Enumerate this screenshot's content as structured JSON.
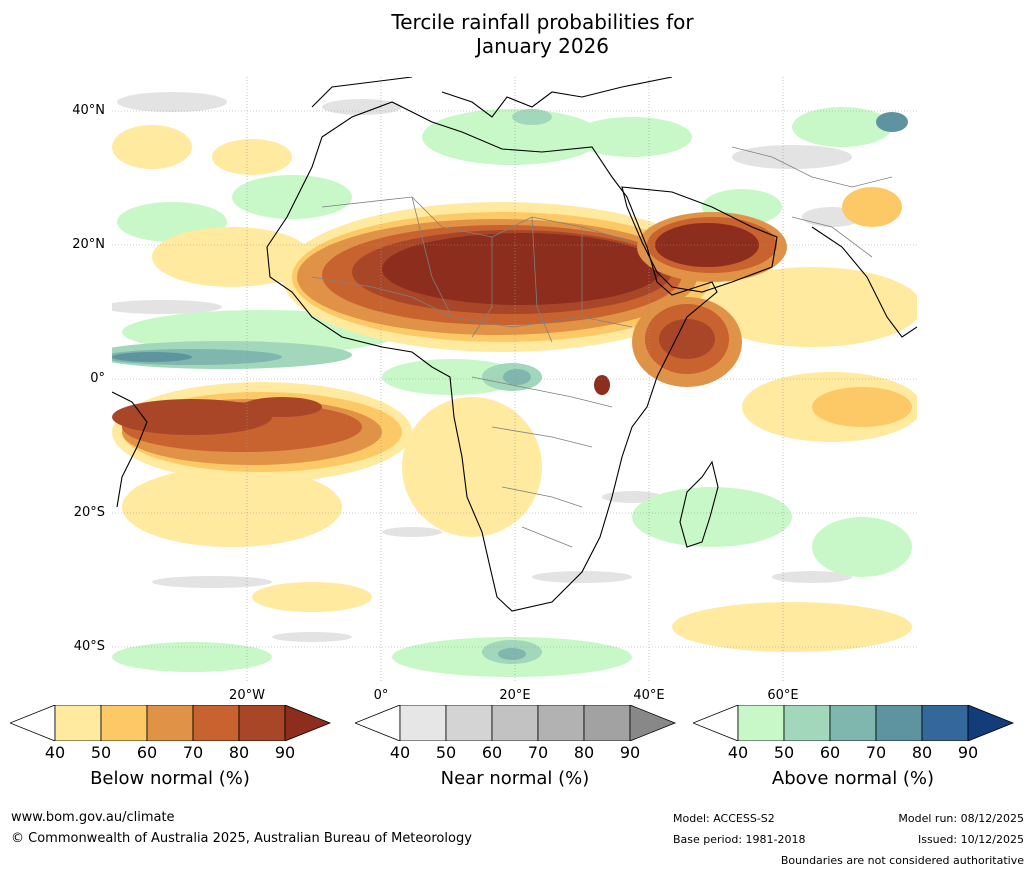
{
  "title": {
    "line1": "Tercile rainfall probabilities for",
    "line2": "January 2026"
  },
  "map": {
    "lat_labels": [
      "40°N",
      "20°N",
      "0°",
      "20°S",
      "40°S"
    ],
    "lon_labels": [
      "20°W",
      "0°",
      "20°E",
      "40°E",
      "60°E"
    ]
  },
  "colorbars": [
    {
      "name": "below",
      "title": "Below normal (%)",
      "ticks": [
        "40",
        "50",
        "60",
        "70",
        "80",
        "90"
      ],
      "colors": [
        "#ffffff",
        "#ffeaa0",
        "#fdc966",
        "#e09246",
        "#c8622f",
        "#a94628",
        "#8c2d1e"
      ]
    },
    {
      "name": "near",
      "title": "Near normal (%)",
      "ticks": [
        "40",
        "50",
        "60",
        "70",
        "80",
        "90"
      ],
      "colors": [
        "#ffffff",
        "#e6e6e6",
        "#d4d4d4",
        "#c2c2c2",
        "#b2b2b2",
        "#a2a2a2",
        "#888888"
      ]
    },
    {
      "name": "above",
      "title": "Above normal (%)",
      "ticks": [
        "40",
        "50",
        "60",
        "70",
        "80",
        "90"
      ],
      "colors": [
        "#ffffff",
        "#c8f8c8",
        "#a2d7bb",
        "#7fb6ad",
        "#5e94a0",
        "#35689a",
        "#123d7a"
      ]
    }
  ],
  "footer": {
    "website": "www.bom.gov.au/climate",
    "copyright": "© Commonwealth of Australia 2025, Australian Bureau of Meteorology",
    "model": "Model: ACCESS-S2",
    "base_period": "Base period: 1981-2018",
    "model_run": "Model run: 08/12/2025",
    "issued": "Issued: 10/12/2025",
    "disclaimer": "Boundaries are not considered authoritative"
  }
}
